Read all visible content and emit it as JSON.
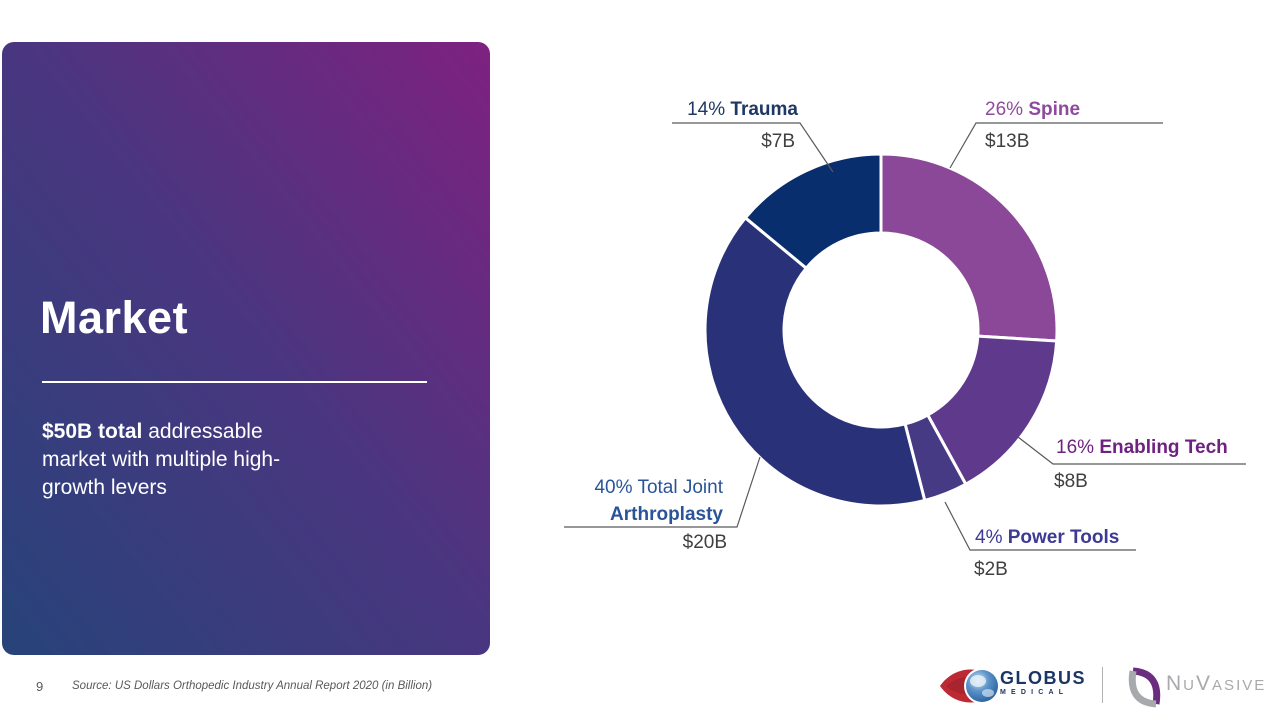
{
  "slide": {
    "title": "Market",
    "subtitle_bold": "$50B total",
    "subtitle_rest": " addressable market with multiple high-growth levers"
  },
  "chart_data": {
    "type": "pie",
    "donut": true,
    "title": "",
    "total_label": "$50B total addressable market",
    "start_angle_deg": 0,
    "direction": "clockwise_from_top",
    "segments": [
      {
        "label": "Spine",
        "pct_label": "26%",
        "pct": 26,
        "value": "$13B",
        "color": "#8B4798",
        "label_color": "#8E4A9C"
      },
      {
        "label": "Enabling Tech",
        "pct_label": "16%",
        "pct": 16,
        "value": "$8B",
        "color": "#5F3A8C",
        "label_color": "#6E2181"
      },
      {
        "label": "Power Tools",
        "pct_label": "4%",
        "pct": 4,
        "value": "$2B",
        "color": "#473A84",
        "label_color": "#3D3A93"
      },
      {
        "label": "Total Joint Arthroplasty",
        "pct_label": "40%",
        "pct": 40,
        "value": "$20B",
        "color": "#293279",
        "label_color": "#2A5499"
      },
      {
        "label": "Trauma",
        "pct_label": "14%",
        "pct": 14,
        "value": "$7B",
        "color": "#082E6D",
        "label_color": "#1F3864"
      }
    ],
    "tja_name_line1": "40% Total Joint",
    "tja_name_line2": "Arthroplasty"
  },
  "footer": {
    "page_number": "9",
    "source": "Source: US Dollars Orthopedic Industry Annual Report 2020 (in Billion)"
  },
  "logos": {
    "globus": {
      "name": "GLOBUS",
      "sub": "MEDICAL"
    },
    "nuvasive": {
      "text": "NuVasive"
    }
  }
}
